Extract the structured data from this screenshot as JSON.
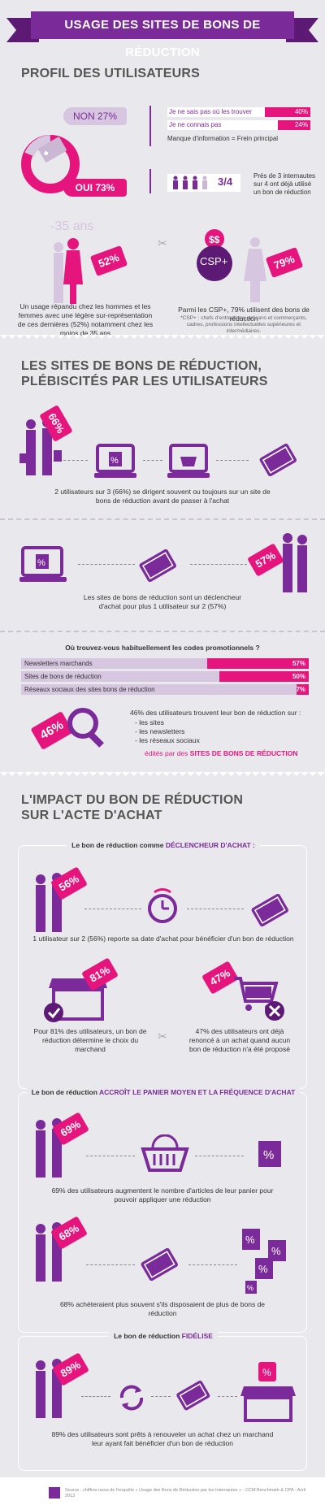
{
  "header": {
    "title": "USAGE DES SITES DE BONS DE RÉDUCTION"
  },
  "profil": {
    "title": "PROFIL DES UTILISATEURS",
    "non": "NON 27%",
    "oui": "OUI 73%",
    "reasons": [
      {
        "label": "Je ne sais pas où les trouver",
        "pct": "40%",
        "value": 0.4
      },
      {
        "label": "Je ne connais pas",
        "pct": "24%",
        "value": 0.24
      }
    ],
    "reasons_note": "Manque d'information = Frein principal",
    "ratio": "3/4",
    "ratio_text": "Près de 3 internautes sur 4 ont déjà utilisé un bon de réduction",
    "age_label": "-35 ans",
    "women_pct": "52%",
    "women_text": "Un usage répandu chez les hommes et les femmes avec une légère sur-représentation de ces dernières (52%) notamment chez les moins de 35 ans",
    "csp_label": "CSP+",
    "csp_pct": "79%",
    "csp_text": "Parmi les CSP+, 79% utilisent des bons de réduction",
    "csp_note": "*CSP+ : chefs d'entreprises, artisans et commerçants, cadres, professions intellectuelles supérieures et intermédiaires."
  },
  "sites": {
    "title_line1": "LES SITES DE BONS DE RÉDUCTION,",
    "title_line2": "PLÉBISCITÉS PAR LES UTILISATEURS",
    "pct1": "66%",
    "text1": "2 utilisateurs sur 3 (66%) se dirigent souvent ou toujours sur un site de bons de réduction avant de passer à l'achat",
    "pct2": "57%",
    "text2": "Les sites de bons de réduction sont un déclencheur d'achat pour plus 1 utilisateur sur 2 (57%)",
    "question": "Où trouvez-vous habituellement les codes promotionnels ?",
    "bars": [
      {
        "label": "Newsletters marchands",
        "pct": "57%",
        "value": 0.57
      },
      {
        "label": "Sites de bons de réduction",
        "pct": "50%",
        "value": 0.5
      },
      {
        "label": "Réseaux sociaux des sites bons de réduction",
        "pct": "7%",
        "value": 0.07
      }
    ],
    "pct3": "46%",
    "text3": "46% des utilisateurs trouvent leur bon de réduction sur :",
    "list": [
      "- les sites",
      "- les newsletters",
      "- les réseaux sociaux"
    ],
    "edited_prefix": "édités par des",
    "edited_strong": "SITES DE BONS DE RÉDUCTION"
  },
  "impact": {
    "title_line1": "L'IMPACT DU BON DE RÉDUCTION",
    "title_line2": "SUR L'ACTE D'ACHAT",
    "box1_title_a": "Le bon de réduction comme",
    "box1_title_b": "DÉCLENCHEUR D'ACHAT :",
    "pct_56": "56%",
    "text_56": "1 utilisateur sur 2 (56%) reporte sa date d'achat pour bénéficier d'un bon de réduction",
    "pct_81": "81%",
    "text_81": "Pour 81% des utilisateurs, un bon de réduction détermine le choix du marchand",
    "pct_47": "47%",
    "text_47": "47% des utilisateurs ont déjà renoncé à un achat quand aucun bon de réduction n'a été proposé",
    "box2_title_a": "Le bon de réduction",
    "box2_title_b": "ACCROÎT LE PANIER MOYEN ET LA FRÉQUENCE D'ACHAT",
    "pct_69": "69%",
    "text_69": "69% des utilisateurs augmentent le nombre d'articles de leur panier pour pouvoir appliquer une réduction",
    "pct_68": "68%",
    "text_68": "68% achèteraient plus souvent s'ils disposaient de plus de bons de réduction",
    "box3_title_a": "Le bon de réduction",
    "box3_title_b": "FIDÉLISE",
    "pct_89": "89%",
    "text_89": "89% des utilisateurs sont prêts à renouveler un achat chez un marchand leur ayant fait bénéficier d'un bon de réduction"
  },
  "footer": {
    "source": "Source : chiffres issus de l'enquête « Usage des Bons de Réduction par les Internautes » - CCM Benchmark & CPA - Avril 2013"
  },
  "colors": {
    "purple": "#7b2a9a",
    "magenta": "#e5157d",
    "lilac": "#d6c6df",
    "background": "#e9e8ec"
  }
}
